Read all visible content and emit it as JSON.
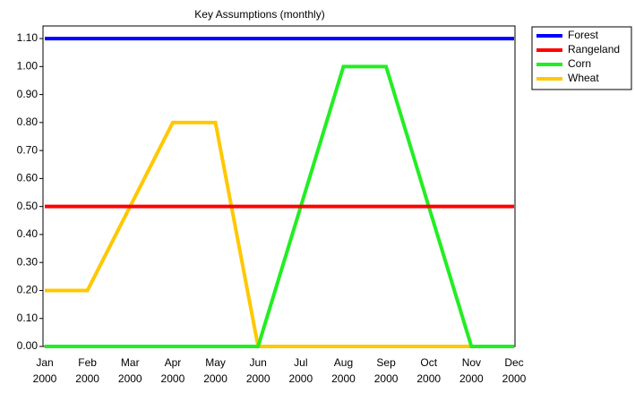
{
  "chart_data": {
    "type": "line",
    "title": "Key Assumptions (monthly)",
    "categories": [
      "Jan 2000",
      "Feb 2000",
      "Mar 2000",
      "Apr 2000",
      "May 2000",
      "Jun 2000",
      "Jul 2000",
      "Aug 2000",
      "Sep 2000",
      "Oct 2000",
      "Nov 2000",
      "Dec 2000"
    ],
    "series": [
      {
        "name": "Forest",
        "color": "#0000ff",
        "values": [
          1.1,
          1.1,
          1.1,
          1.1,
          1.1,
          1.1,
          1.1,
          1.1,
          1.1,
          1.1,
          1.1,
          1.1
        ]
      },
      {
        "name": "Rangeland",
        "color": "#ff0000",
        "values": [
          0.5,
          0.5,
          0.5,
          0.5,
          0.5,
          0.5,
          0.5,
          0.5,
          0.5,
          0.5,
          0.5,
          0.5
        ]
      },
      {
        "name": "Corn",
        "color": "#22ee22",
        "values": [
          0,
          0,
          0,
          0,
          0,
          0,
          0.5,
          1,
          1,
          0.5,
          0,
          0
        ]
      },
      {
        "name": "Wheat",
        "color": "#ffc800",
        "values": [
          0.2,
          0.2,
          0.5,
          0.8,
          0.8,
          0,
          0,
          0,
          0,
          0,
          0,
          0
        ]
      }
    ],
    "ylim": [
      0,
      1.145
    ],
    "yticks": [
      {
        "value": 0,
        "label": "0.00"
      },
      {
        "value": 0.1,
        "label": "0.10"
      },
      {
        "value": 0.2,
        "label": "0.20"
      },
      {
        "value": 0.3,
        "label": "0.30"
      },
      {
        "value": 0.4,
        "label": "0.40"
      },
      {
        "value": 0.5,
        "label": "0.50"
      },
      {
        "value": 0.6,
        "label": "0.60"
      },
      {
        "value": 0.7,
        "label": "0.70"
      },
      {
        "value": 0.8,
        "label": "0.80"
      },
      {
        "value": 0.9,
        "label": "0.90"
      },
      {
        "value": 1,
        "label": "1.00"
      },
      {
        "value": 1.1,
        "label": "1.10"
      }
    ],
    "legend": "right"
  }
}
